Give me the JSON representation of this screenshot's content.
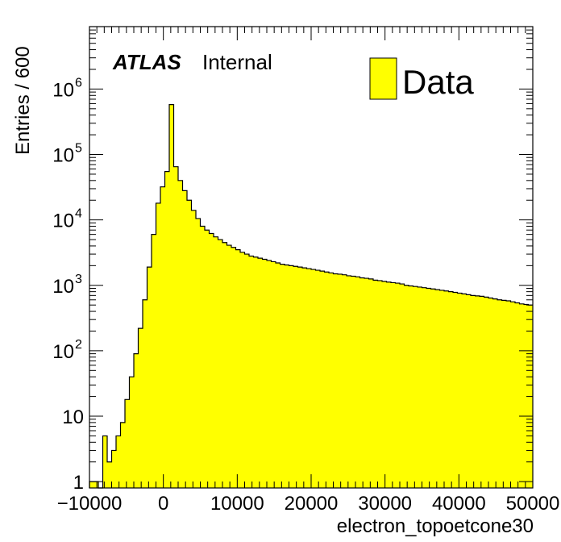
{
  "chart_data": {
    "type": "histogram",
    "title": "",
    "xlabel": "electron_topoetcone30",
    "ylabel": "Entries / 600",
    "y_scale": "log",
    "xlim": [
      -10000,
      50000
    ],
    "ylim": [
      0.8,
      9000000
    ],
    "bin_width": 600,
    "x_ticks": [
      {
        "value": -10000,
        "label": "−10000"
      },
      {
        "value": 0,
        "label": "0"
      },
      {
        "value": 10000,
        "label": "10000"
      },
      {
        "value": 20000,
        "label": "20000"
      },
      {
        "value": 30000,
        "label": "30000"
      },
      {
        "value": 40000,
        "label": "40000"
      },
      {
        "value": 50000,
        "label": "50000"
      }
    ],
    "y_ticks": [
      {
        "value": 1,
        "base": "1",
        "exp": ""
      },
      {
        "value": 10,
        "base": "10",
        "exp": ""
      },
      {
        "value": 100,
        "base": "10",
        "exp": "2"
      },
      {
        "value": 1000,
        "base": "10",
        "exp": "3"
      },
      {
        "value": 10000,
        "base": "10",
        "exp": "4"
      },
      {
        "value": 100000,
        "base": "10",
        "exp": "5"
      },
      {
        "value": 1000000,
        "base": "10",
        "exp": "6"
      }
    ],
    "atlas_label": "ATLAS",
    "atlas_sublabel": "Internal",
    "legend": {
      "position": "top-right",
      "entries": [
        {
          "name": "Data",
          "color": "#ffff00"
        }
      ]
    },
    "fill_color": "#ffff00",
    "line_color": "#000000",
    "series": [
      {
        "name": "Data",
        "x_start": -10000,
        "values": [
          1,
          1,
          0,
          5,
          2,
          3,
          5,
          8,
          18,
          40,
          90,
          220,
          600,
          1900,
          6000,
          18000,
          32000,
          55000,
          580000,
          65000,
          40000,
          28000,
          20000,
          14000,
          10500,
          8000,
          7000,
          6200,
          5500,
          5000,
          4500,
          4100,
          3800,
          3500,
          3200,
          3000,
          2800,
          2700,
          2600,
          2500,
          2400,
          2300,
          2200,
          2100,
          2050,
          2000,
          1950,
          1900,
          1850,
          1800,
          1750,
          1700,
          1650,
          1600,
          1550,
          1500,
          1480,
          1450,
          1400,
          1380,
          1350,
          1300,
          1280,
          1250,
          1200,
          1180,
          1150,
          1120,
          1100,
          1080,
          1050,
          1000,
          980,
          960,
          940,
          920,
          900,
          880,
          860,
          840,
          820,
          800,
          780,
          760,
          740,
          720,
          700,
          690,
          680,
          660,
          640,
          620,
          600,
          590,
          580,
          560,
          540,
          520,
          510,
          500
        ]
      }
    ]
  }
}
